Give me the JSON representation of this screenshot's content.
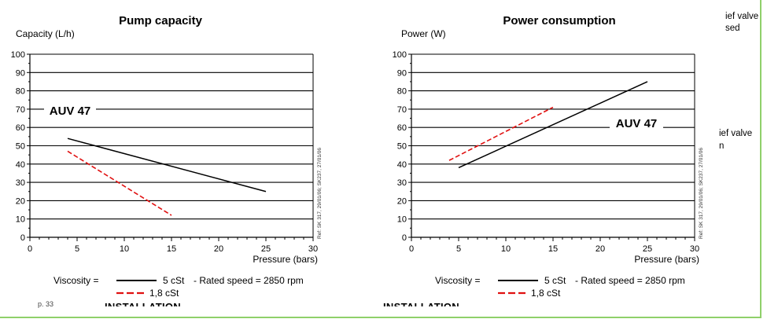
{
  "chart_data": [
    {
      "type": "line",
      "title": "Pump capacity",
      "ylabel": "Capacity (L/h)",
      "xlabel": "Pressure (bars)",
      "xlim": [
        0,
        30
      ],
      "ylim": [
        0,
        100
      ],
      "xticks": [
        0,
        5,
        10,
        15,
        20,
        25,
        30
      ],
      "yticks": [
        0,
        10,
        20,
        30,
        40,
        50,
        60,
        70,
        80,
        90,
        100
      ],
      "grid": "horizontal",
      "annotation": "AUV 47",
      "side_note": "Ref: SK 317, 29/01/06; SK237, 27/01/06",
      "series": [
        {
          "name": "5 cSt",
          "style": "solid",
          "color": "#000000",
          "x": [
            4,
            25
          ],
          "y": [
            54,
            25
          ]
        },
        {
          "name": "1,8 cSt",
          "style": "dashed",
          "color": "#e01010",
          "x": [
            4,
            15
          ],
          "y": [
            47,
            12
          ]
        }
      ],
      "legend": {
        "prefix": "Viscosity =",
        "suffix": "- Rated speed = 2850 rpm"
      }
    },
    {
      "type": "line",
      "title": "Power consumption",
      "ylabel": "Power (W)",
      "xlabel": "Pressure (bars)",
      "xlim": [
        0,
        30
      ],
      "ylim": [
        0,
        100
      ],
      "xticks": [
        0,
        5,
        10,
        15,
        20,
        25,
        30
      ],
      "yticks": [
        0,
        10,
        20,
        30,
        40,
        50,
        60,
        70,
        80,
        90,
        100
      ],
      "grid": "horizontal",
      "annotation": "AUV 47",
      "side_note": "Ref: SK 317, 29/01/06; SK237, 27/01/06",
      "series": [
        {
          "name": "5 cSt",
          "style": "solid",
          "color": "#000000",
          "x": [
            5,
            25
          ],
          "y": [
            38,
            85
          ]
        },
        {
          "name": "1,8 cSt",
          "style": "dashed",
          "color": "#e01010",
          "x": [
            4,
            15
          ],
          "y": [
            42,
            71
          ]
        }
      ],
      "legend": {
        "prefix": "Viscosity =",
        "suffix": "- Rated speed = 2850 rpm"
      }
    }
  ],
  "fragments": {
    "top_line1": "ief valve",
    "top_line2": "sed",
    "mid_line1": "ief valve",
    "mid_line2": "n",
    "left_heading": "INSTALLATION",
    "right_heading": "INSTALLATION",
    "page_number": "p. 33"
  },
  "colors": {
    "frame": "#8fd06a",
    "dashed_series": "#e01010"
  }
}
